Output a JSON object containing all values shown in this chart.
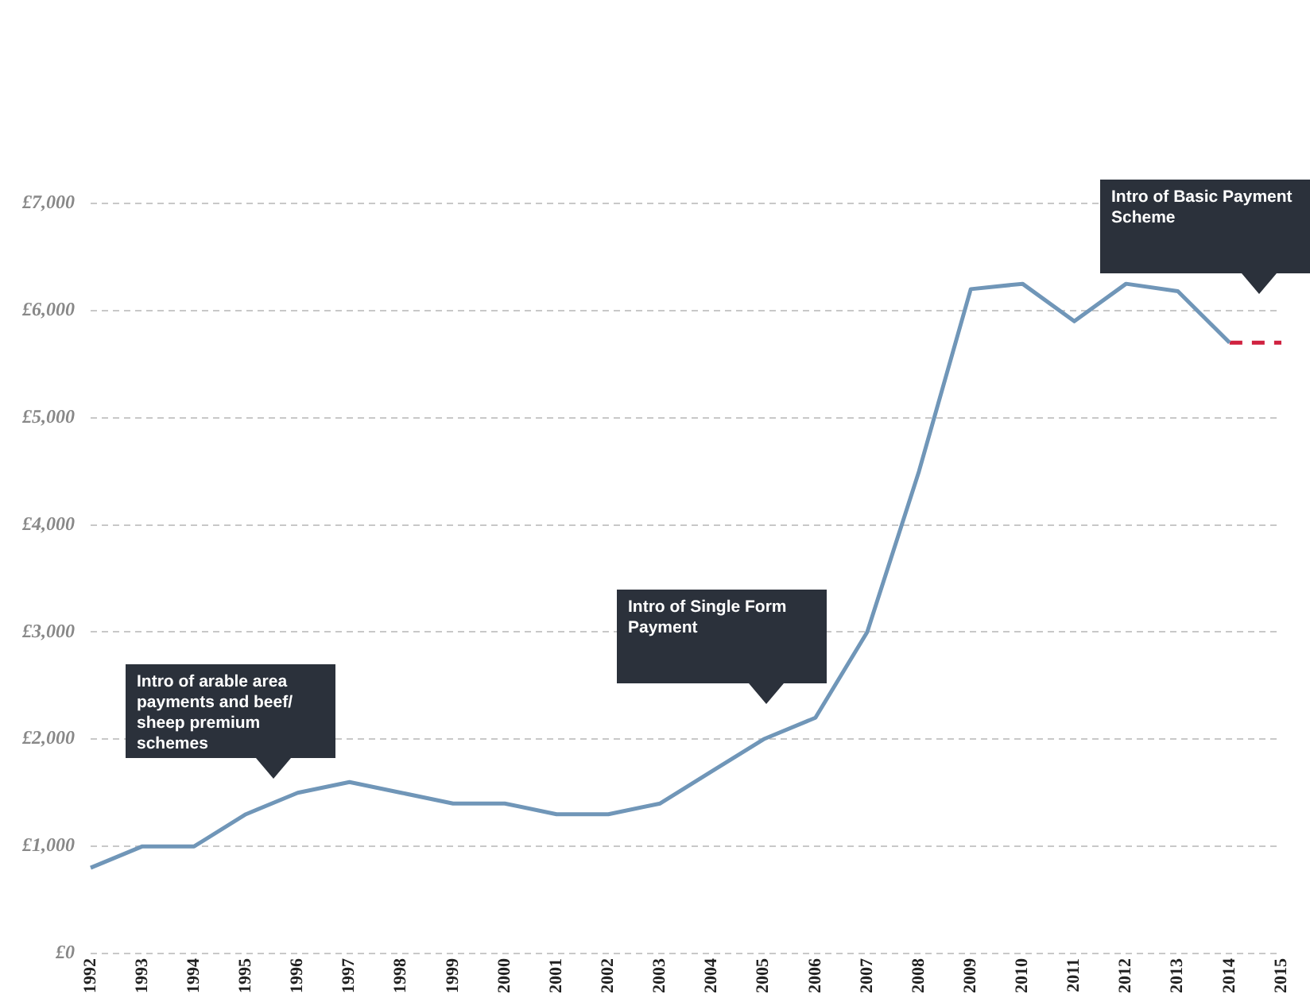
{
  "chart_data": {
    "type": "line",
    "categories": [
      "1992",
      "1993",
      "1994",
      "1995",
      "1996",
      "1997",
      "1998",
      "1999",
      "2000",
      "2001",
      "2002",
      "2003",
      "2004",
      "2005",
      "2006",
      "2007",
      "2008",
      "2009",
      "2010",
      "2011",
      "2012",
      "2013",
      "2014",
      "2015"
    ],
    "series": [
      {
        "color": "#7096b8",
        "values": [
          800,
          1000,
          1000,
          1300,
          1500,
          1600,
          1500,
          1400,
          1400,
          1300,
          1300,
          1400,
          1700,
          2000,
          2200,
          3000,
          4500,
          6200,
          6250,
          5900,
          6250,
          6180,
          5700,
          null
        ]
      },
      {
        "color": "#d0213f",
        "line_style": "dashed",
        "values": [
          null,
          null,
          null,
          null,
          null,
          null,
          null,
          null,
          null,
          null,
          null,
          null,
          null,
          null,
          null,
          null,
          null,
          null,
          null,
          null,
          null,
          null,
          5700,
          5700
        ]
      }
    ],
    "ylim": [
      0,
      7000
    ],
    "yticks": [
      {
        "value": 0,
        "label": "£0"
      },
      {
        "value": 1000,
        "label": "£1,000"
      },
      {
        "value": 2000,
        "label": "£2,000"
      },
      {
        "value": 3000,
        "label": "£3,000"
      },
      {
        "value": 4000,
        "label": "£4,000"
      },
      {
        "value": 5000,
        "label": "£5,000"
      },
      {
        "value": 6000,
        "label": "£6,000"
      },
      {
        "value": 7000,
        "label": "£7,000"
      }
    ],
    "grid": "y",
    "legend": false,
    "marker": "none",
    "annotations": [
      "Intro of arable area payments and beef/ sheep premium schemes",
      "Intro of Single Form Payment",
      "Intro of Basic Payment Scheme"
    ]
  }
}
